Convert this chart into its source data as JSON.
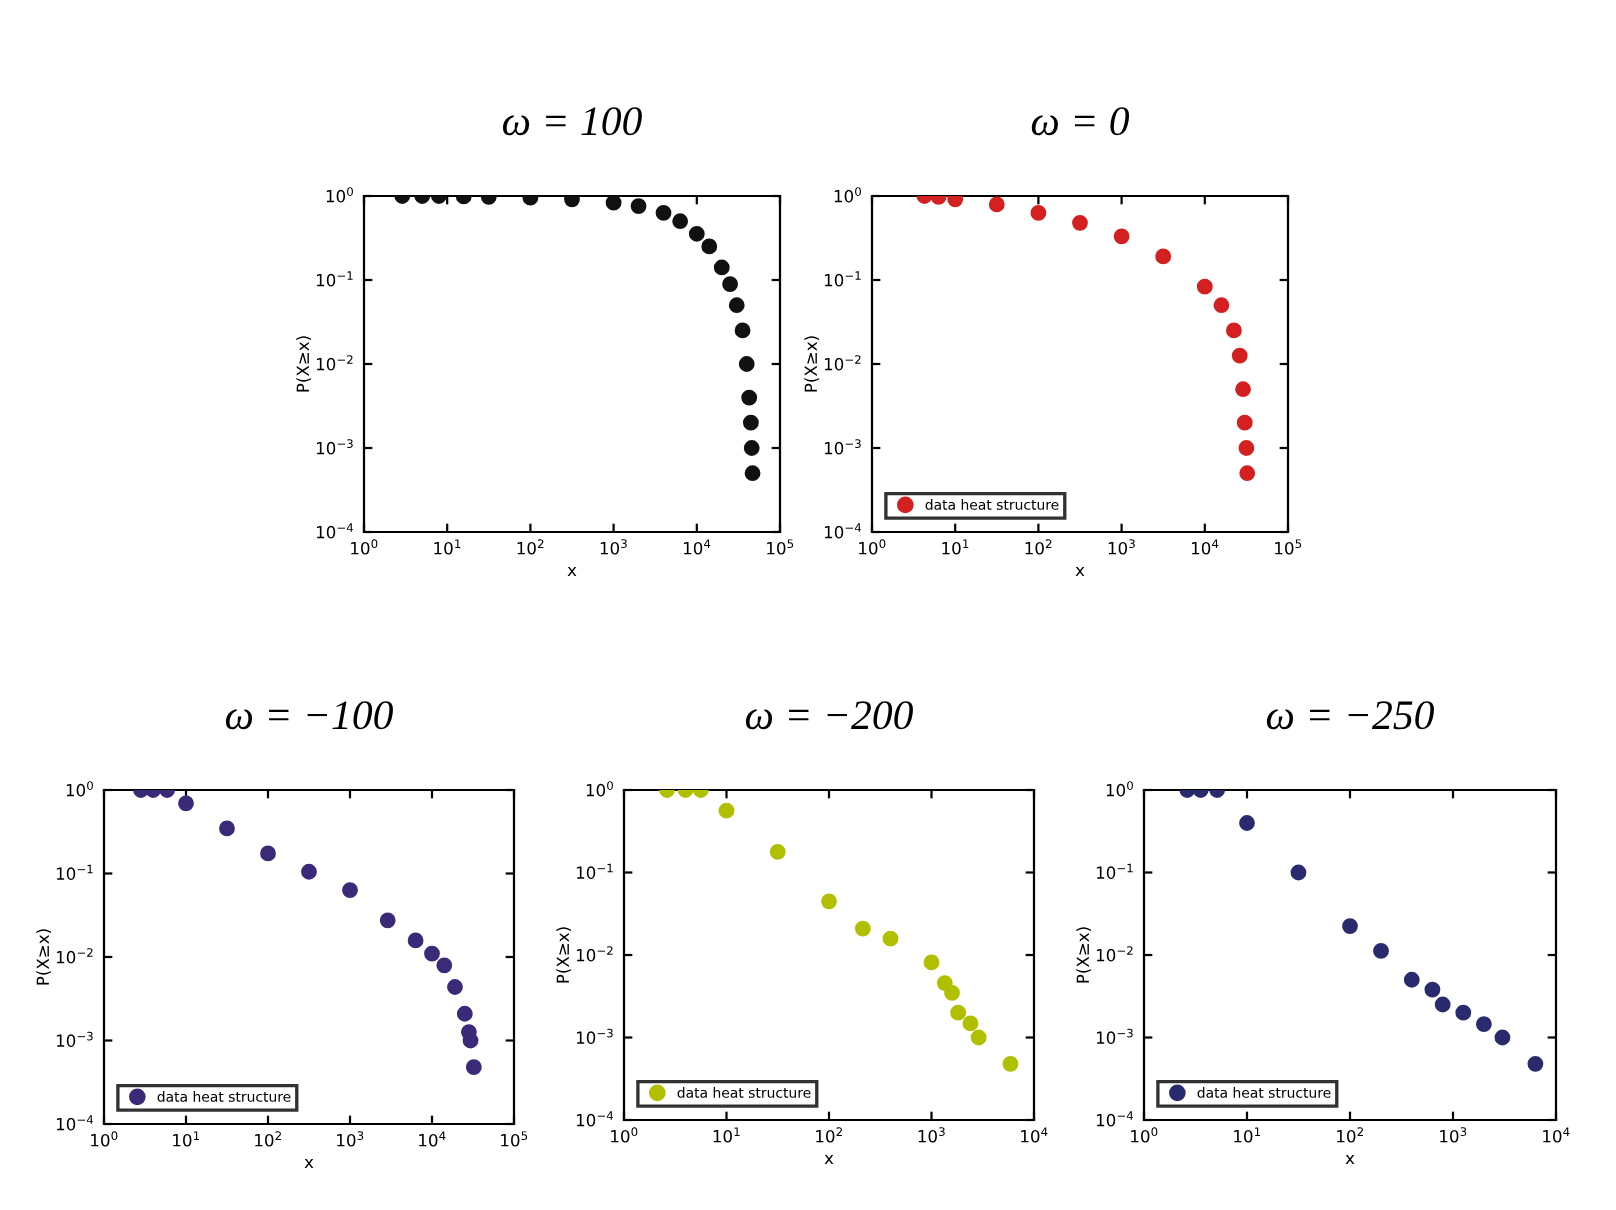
{
  "chart_data": [
    {
      "type": "scatter",
      "title": "ω = 100",
      "xlabel": "x",
      "ylabel": "P(X≥x)",
      "log": "xy",
      "marker": "circle",
      "legend": false,
      "xlim": [
        1,
        100000
      ],
      "ylim": [
        0.0001,
        1
      ],
      "xticks": [
        {
          "value": 1,
          "label": "10$^{0}$"
        },
        {
          "value": 10,
          "label": "10$^{1}$"
        },
        {
          "value": 100,
          "label": "10$^{2}$"
        },
        {
          "value": 1000,
          "label": "10$^{3}$"
        },
        {
          "value": 10000,
          "label": "10$^{4}$"
        },
        {
          "value": 100000,
          "label": "10$^{5}$"
        }
      ],
      "yticks": [
        {
          "value": 0.0001,
          "label": "10$^{−4}$"
        },
        {
          "value": 0.001,
          "label": "10$^{−3}$"
        },
        {
          "value": 0.01,
          "label": "10$^{−2}$"
        },
        {
          "value": 0.1,
          "label": "10$^{−1}$"
        },
        {
          "value": 1,
          "label": "10$^{0}$"
        }
      ],
      "series": [
        {
          "color": "#111111",
          "x": [
            2.88,
            5.01,
            7.94,
            15.8,
            31.6,
            100,
            316,
            1000,
            1995,
            3981,
            6310,
            10000,
            14125,
            19953,
            25119,
            30200,
            35481,
            39811,
            42658,
            44668,
            45709,
            46774
          ],
          "values": [
            1,
            1,
            1,
            0.989,
            0.977,
            0.955,
            0.912,
            0.832,
            0.759,
            0.631,
            0.501,
            0.355,
            0.251,
            0.141,
            0.0891,
            0.0501,
            0.0251,
            0.01,
            0.00398,
            0.002,
            0.001,
            0.000501
          ]
        }
      ]
    },
    {
      "type": "scatter",
      "title": "ω = 0",
      "xlabel": "x",
      "ylabel": "P(X≥x)",
      "log": "xy",
      "marker": "circle",
      "legend": "bottom left",
      "xlim": [
        1,
        100000
      ],
      "ylim": [
        0.0001,
        1
      ],
      "xticks": [
        {
          "value": 1,
          "label": "10$^{0}$"
        },
        {
          "value": 10,
          "label": "10$^{1}$"
        },
        {
          "value": 100,
          "label": "10$^{2}$"
        },
        {
          "value": 1000,
          "label": "10$^{3}$"
        },
        {
          "value": 10000,
          "label": "10$^{4}$"
        },
        {
          "value": 100000,
          "label": "10$^{5}$"
        }
      ],
      "yticks": [
        {
          "value": 0.0001,
          "label": "10$^{−4}$"
        },
        {
          "value": 0.001,
          "label": "10$^{−3}$"
        },
        {
          "value": 0.01,
          "label": "10$^{−2}$"
        },
        {
          "value": 0.1,
          "label": "10$^{−1}$"
        },
        {
          "value": 1,
          "label": "10$^{0}$"
        }
      ],
      "series": [
        {
          "name": "data heat structure",
          "color": "#d42020",
          "x": [
            4.27,
            6.31,
            10,
            31.6,
            100,
            316,
            1000,
            3162,
            10000,
            15849,
            22387,
            26303,
            28840,
            30200,
            31623,
            32359
          ],
          "values": [
            1,
            0.977,
            0.912,
            0.794,
            0.631,
            0.479,
            0.331,
            0.191,
            0.0832,
            0.0501,
            0.0251,
            0.0126,
            0.00501,
            0.002,
            0.001,
            0.000501
          ]
        }
      ]
    },
    {
      "type": "scatter",
      "title": "ω = −100",
      "xlabel": "x",
      "ylabel": "P(X≥x)",
      "log": "xy",
      "marker": "circle",
      "legend": "bottom left",
      "xlim": [
        1,
        100000
      ],
      "ylim": [
        0.0001,
        1
      ],
      "xticks": [
        {
          "value": 1,
          "label": "10$^{0}$"
        },
        {
          "value": 10,
          "label": "10$^{1}$"
        },
        {
          "value": 100,
          "label": "10$^{2}$"
        },
        {
          "value": 1000,
          "label": "10$^{3}$"
        },
        {
          "value": 10000,
          "label": "10$^{4}$"
        },
        {
          "value": 100000,
          "label": "10$^{5}$"
        }
      ],
      "yticks": [
        {
          "value": 0.0001,
          "label": "10$^{−4}$"
        },
        {
          "value": 0.001,
          "label": "10$^{−3}$"
        },
        {
          "value": 0.01,
          "label": "10$^{−2}$"
        },
        {
          "value": 0.1,
          "label": "10$^{−1}$"
        },
        {
          "value": 1,
          "label": "10$^{0}$"
        }
      ],
      "series": [
        {
          "name": "data heat structure",
          "color": "#3a2a78",
          "x": [
            2.82,
            3.98,
            5.89,
            10,
            31.6,
            100,
            316,
            1000,
            2884,
            6310,
            10000,
            14125,
            19055,
            25119,
            28184,
            29512,
            32359
          ],
          "values": [
            1,
            1,
            1,
            0.692,
            0.347,
            0.174,
            0.105,
            0.0631,
            0.0275,
            0.0158,
            0.011,
            0.00794,
            0.00437,
            0.00209,
            0.00126,
            0.001,
            0.000479
          ]
        }
      ]
    },
    {
      "type": "scatter",
      "title": "ω = −200",
      "xlabel": "x",
      "ylabel": "P(X≥x)",
      "log": "xy",
      "marker": "circle",
      "legend": "bottom left",
      "xlim": [
        1,
        10000
      ],
      "ylim": [
        0.0001,
        1
      ],
      "xticks": [
        {
          "value": 1,
          "label": "10$^{0}$"
        },
        {
          "value": 10,
          "label": "10$^{1}$"
        },
        {
          "value": 100,
          "label": "10$^{2}$"
        },
        {
          "value": 1000,
          "label": "10$^{3}$"
        },
        {
          "value": 10000,
          "label": "10$^{4}$"
        }
      ],
      "yticks": [
        {
          "value": 0.0001,
          "label": "10$^{−4}$"
        },
        {
          "value": 0.001,
          "label": "10$^{−3}$"
        },
        {
          "value": 0.01,
          "label": "10$^{−2}$"
        },
        {
          "value": 0.1,
          "label": "10$^{−1}$"
        },
        {
          "value": 1,
          "label": "10$^{0}$"
        }
      ],
      "series": [
        {
          "name": "data heat structure",
          "color": "#b0c000",
          "x": [
            2.63,
            3.98,
            5.62,
            10,
            31.6,
            100,
            214,
            398,
            1000,
            1349,
            1585,
            1820,
            2399,
            2884,
            5888
          ],
          "values": [
            1,
            1,
            1,
            0.562,
            0.178,
            0.0447,
            0.0209,
            0.0158,
            0.00813,
            0.00457,
            0.00347,
            0.002,
            0.00148,
            0.001,
            0.000479
          ]
        }
      ]
    },
    {
      "type": "scatter",
      "title": "ω = −250",
      "xlabel": "x",
      "ylabel": "P(X≥x)",
      "log": "xy",
      "marker": "circle",
      "legend": "bottom left",
      "xlim": [
        1,
        10000
      ],
      "ylim": [
        0.0001,
        1
      ],
      "xticks": [
        {
          "value": 1,
          "label": "10$^{0}$"
        },
        {
          "value": 10,
          "label": "10$^{1}$"
        },
        {
          "value": 100,
          "label": "10$^{2}$"
        },
        {
          "value": 1000,
          "label": "10$^{3}$"
        },
        {
          "value": 10000,
          "label": "10$^{4}$"
        }
      ],
      "yticks": [
        {
          "value": 0.0001,
          "label": "10$^{−4}$"
        },
        {
          "value": 0.001,
          "label": "10$^{−3}$"
        },
        {
          "value": 0.01,
          "label": "10$^{−2}$"
        },
        {
          "value": 0.1,
          "label": "10$^{−1}$"
        },
        {
          "value": 1,
          "label": "10$^{0}$"
        }
      ],
      "series": [
        {
          "name": "data heat structure",
          "color": "#2a2a6e",
          "x": [
            2.63,
            3.55,
            5.13,
            10,
            31.6,
            100,
            200,
            398,
            631,
            794,
            1259,
            1995,
            3020,
            6310
          ],
          "values": [
            1,
            1,
            1,
            0.398,
            0.1,
            0.0224,
            0.0112,
            0.00501,
            0.0038,
            0.00251,
            0.002,
            0.00145,
            0.001,
            0.000479
          ]
        }
      ]
    }
  ]
}
